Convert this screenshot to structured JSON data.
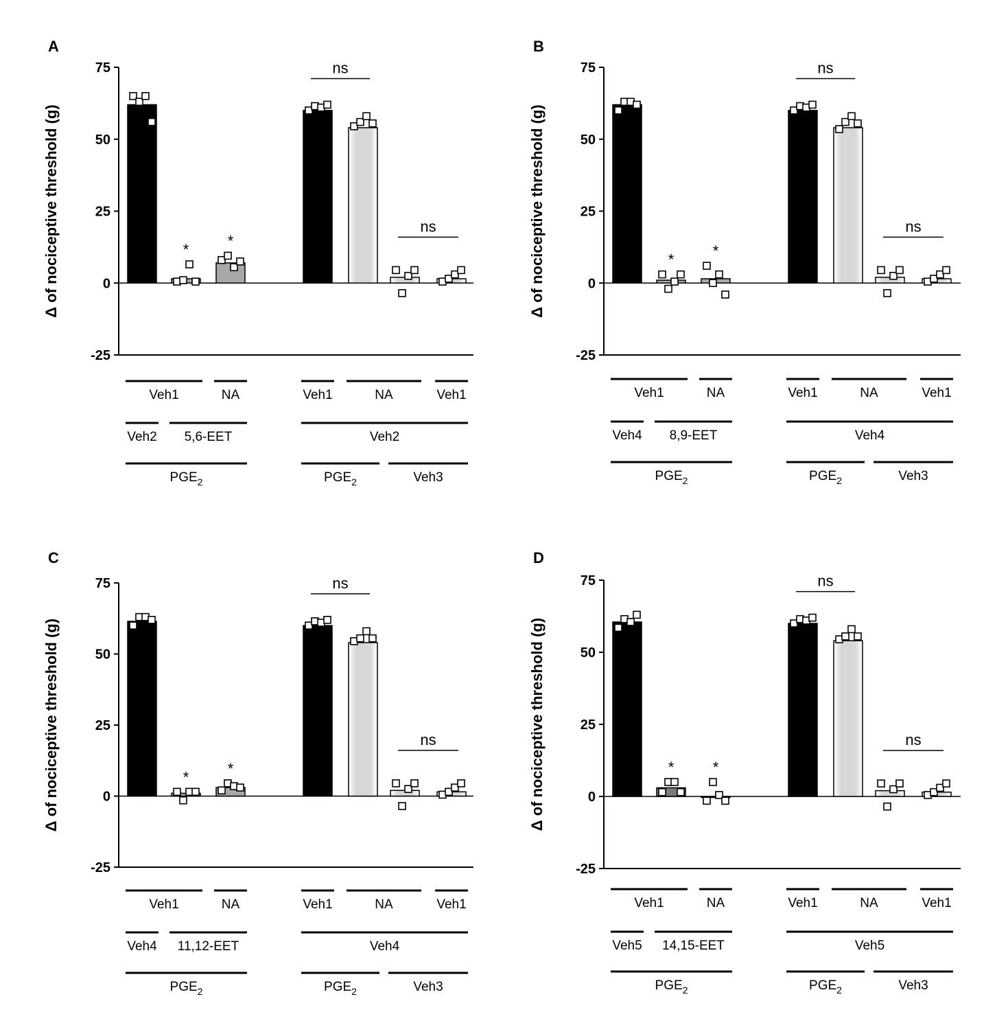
{
  "figure": {
    "colors": {
      "black": "#000000",
      "dark_gray": "#7a7a7a",
      "mid_gray": "#a8a8a8",
      "light_gray": "#d7d7d7",
      "marker_fill": "#ffffff",
      "line": "#000000"
    }
  },
  "chart_data": [
    {
      "type": "bar",
      "panel": "A",
      "ylabel": "Δ of nociceptive threshold (g)",
      "ylim": [
        -25,
        75
      ],
      "yticks": [
        "75",
        "50",
        "25",
        "0",
        "-25"
      ],
      "yticks_values": [
        75,
        50,
        25,
        0,
        -25
      ],
      "bars": [
        {
          "name": "PGE2 Veh2 Veh1",
          "value": 62,
          "fill": "black",
          "points": [
            65,
            63,
            65,
            56
          ],
          "star": ""
        },
        {
          "name": "PGE2 5,6-EET Veh1",
          "value": 1.5,
          "fill": "mid_gray",
          "points": [
            0.5,
            1,
            6.5,
            0.5
          ],
          "star": "*"
        },
        {
          "name": "PGE2 5,6-EET NA",
          "value": 7,
          "fill": "mid_gray",
          "points": [
            8,
            9.5,
            5.5,
            7.5
          ],
          "star": "*"
        },
        {
          "name": "PGE2 Veh2 Veh1",
          "value": 60,
          "fill": "black",
          "points": [
            60,
            61.5,
            61,
            62
          ],
          "star": ""
        },
        {
          "name": "PGE2 Veh2 NA",
          "value": 54,
          "fill": "light_gray",
          "points": [
            54.5,
            56,
            58,
            55.5
          ],
          "star": ""
        },
        {
          "name": "Veh3 Veh2 NA",
          "value": 2,
          "fill": "light_gray",
          "points": [
            4.5,
            -3.5,
            2.5,
            4.5
          ],
          "star": ""
        },
        {
          "name": "Veh3 Veh2 Veh1",
          "value": 1.5,
          "fill": "light_gray",
          "points": [
            0.5,
            1.5,
            3,
            4.5
          ],
          "star": ""
        }
      ],
      "significance": [
        {
          "label": "ns",
          "from_bar": 3,
          "to_bar": 4
        },
        {
          "label": "ns",
          "from_bar": 5,
          "to_bar": 6
        }
      ],
      "row1": [
        {
          "label": "Veh1",
          "bars": [
            0,
            1
          ]
        },
        {
          "label": "NA",
          "bars": [
            2,
            2
          ]
        },
        {
          "label": "Veh1",
          "bars": [
            3,
            3
          ]
        },
        {
          "label": "NA",
          "bars": [
            4,
            5
          ]
        },
        {
          "label": "Veh1",
          "bars": [
            6,
            6
          ]
        }
      ],
      "row2": [
        {
          "label": "Veh2",
          "bars": [
            0,
            0
          ]
        },
        {
          "label": "5,6-EET",
          "bars": [
            1,
            2
          ]
        },
        {
          "label": "Veh2",
          "bars": [
            3,
            6
          ]
        }
      ],
      "row3": [
        {
          "label": "PGE",
          "sub": "2",
          "bars": [
            0,
            2
          ]
        },
        {
          "label": "PGE",
          "sub": "2",
          "bars": [
            3,
            4
          ]
        },
        {
          "label": "Veh3",
          "sub": "",
          "bars": [
            5,
            6
          ]
        }
      ]
    },
    {
      "type": "bar",
      "panel": "B",
      "ylabel": "Δ of nociceptive threshold (g)",
      "ylim": [
        -25,
        75
      ],
      "yticks": [
        "75",
        "50",
        "25",
        "0",
        "-25"
      ],
      "yticks_values": [
        75,
        50,
        25,
        0,
        -25
      ],
      "bars": [
        {
          "name": "PGE2 Veh4 Veh1",
          "value": 62,
          "fill": "black",
          "points": [
            60,
            63,
            63,
            62
          ],
          "star": ""
        },
        {
          "name": "PGE2 8,9-EET Veh1",
          "value": 1,
          "fill": "mid_gray",
          "points": [
            3,
            -2,
            0.5,
            3
          ],
          "star": "*"
        },
        {
          "name": "PGE2 8,9-EET NA",
          "value": 1.5,
          "fill": "mid_gray",
          "points": [
            6,
            0,
            3,
            -4
          ],
          "star": "*"
        },
        {
          "name": "PGE2 Veh4 Veh1",
          "value": 60,
          "fill": "black",
          "points": [
            60,
            61.5,
            61,
            62
          ],
          "star": ""
        },
        {
          "name": "PGE2 Veh4 NA",
          "value": 54,
          "fill": "light_gray",
          "points": [
            53.5,
            56,
            58,
            55.5
          ],
          "star": ""
        },
        {
          "name": "Veh3 Veh4 NA",
          "value": 2,
          "fill": "light_gray",
          "points": [
            4.5,
            -3.5,
            2.5,
            4.5
          ],
          "star": ""
        },
        {
          "name": "Veh3 Veh4 Veh1",
          "value": 1.5,
          "fill": "light_gray",
          "points": [
            0.5,
            1.5,
            3,
            4.5
          ],
          "star": ""
        }
      ],
      "significance": [
        {
          "label": "ns",
          "from_bar": 3,
          "to_bar": 4
        },
        {
          "label": "ns",
          "from_bar": 5,
          "to_bar": 6
        }
      ],
      "row1": [
        {
          "label": "Veh1",
          "bars": [
            0,
            1
          ]
        },
        {
          "label": "NA",
          "bars": [
            2,
            2
          ]
        },
        {
          "label": "Veh1",
          "bars": [
            3,
            3
          ]
        },
        {
          "label": "NA",
          "bars": [
            4,
            5
          ]
        },
        {
          "label": "Veh1",
          "bars": [
            6,
            6
          ]
        }
      ],
      "row2": [
        {
          "label": "Veh4",
          "bars": [
            0,
            0
          ]
        },
        {
          "label": "8,9-EET",
          "bars": [
            1,
            2
          ]
        },
        {
          "label": "Veh4",
          "bars": [
            3,
            6
          ]
        }
      ],
      "row3": [
        {
          "label": "PGE",
          "sub": "2",
          "bars": [
            0,
            2
          ]
        },
        {
          "label": "PGE",
          "sub": "2",
          "bars": [
            3,
            4
          ]
        },
        {
          "label": "Veh3",
          "sub": "",
          "bars": [
            5,
            6
          ]
        }
      ]
    },
    {
      "type": "bar",
      "panel": "C",
      "ylabel": "Δ of nociceptive threshold (g)",
      "ylim": [
        -25,
        75
      ],
      "yticks": [
        "75",
        "50",
        "25",
        "0",
        "-25"
      ],
      "yticks_values": [
        75,
        50,
        25,
        0,
        -25
      ],
      "bars": [
        {
          "name": "PGE2 Veh4 Veh1",
          "value": 61.5,
          "fill": "black",
          "points": [
            60,
            63,
            63,
            62
          ],
          "star": ""
        },
        {
          "name": "PGE2 11,12-EET Veh1",
          "value": 1,
          "fill": "mid_gray",
          "points": [
            1.5,
            -1.5,
            1.5,
            1.5
          ],
          "star": "*"
        },
        {
          "name": "PGE2 11,12-EET NA",
          "value": 3,
          "fill": "mid_gray",
          "points": [
            2,
            4.5,
            3.5,
            3
          ],
          "star": "*"
        },
        {
          "name": "PGE2 Veh4 Veh1",
          "value": 60,
          "fill": "black",
          "points": [
            60,
            61.5,
            61,
            62
          ],
          "star": ""
        },
        {
          "name": "PGE2 Veh4 NA",
          "value": 54,
          "fill": "light_gray",
          "points": [
            54.5,
            55.5,
            58,
            55.5
          ],
          "star": ""
        },
        {
          "name": "Veh3 Veh4 NA",
          "value": 2,
          "fill": "light_gray",
          "points": [
            4.5,
            -3.5,
            2.5,
            4.5
          ],
          "star": ""
        },
        {
          "name": "Veh3 Veh4 Veh1",
          "value": 1.5,
          "fill": "light_gray",
          "points": [
            0.5,
            1.5,
            3,
            4.5
          ],
          "star": ""
        }
      ],
      "significance": [
        {
          "label": "ns",
          "from_bar": 3,
          "to_bar": 4
        },
        {
          "label": "ns",
          "from_bar": 5,
          "to_bar": 6
        }
      ],
      "row1": [
        {
          "label": "Veh1",
          "bars": [
            0,
            1
          ]
        },
        {
          "label": "NA",
          "bars": [
            2,
            2
          ]
        },
        {
          "label": "Veh1",
          "bars": [
            3,
            3
          ]
        },
        {
          "label": "NA",
          "bars": [
            4,
            5
          ]
        },
        {
          "label": "Veh1",
          "bars": [
            6,
            6
          ]
        }
      ],
      "row2": [
        {
          "label": "Veh4",
          "bars": [
            0,
            0
          ]
        },
        {
          "label": "11,12-EET",
          "bars": [
            1,
            2
          ]
        },
        {
          "label": "Veh4",
          "bars": [
            3,
            6
          ]
        }
      ],
      "row3": [
        {
          "label": "PGE",
          "sub": "2",
          "bars": [
            0,
            2
          ]
        },
        {
          "label": "PGE",
          "sub": "2",
          "bars": [
            3,
            4
          ]
        },
        {
          "label": "Veh3",
          "sub": "",
          "bars": [
            5,
            6
          ]
        }
      ]
    },
    {
      "type": "bar",
      "panel": "D",
      "ylabel": "Δ of nociceptive threshold (g)",
      "ylim": [
        -25,
        75
      ],
      "yticks": [
        "75",
        "50",
        "25",
        "0",
        "-25"
      ],
      "yticks_values": [
        75,
        50,
        25,
        0,
        -25
      ],
      "bars": [
        {
          "name": "PGE2 Veh5 Veh1",
          "value": 60.5,
          "fill": "black",
          "points": [
            58.5,
            61.5,
            60.5,
            63
          ],
          "star": ""
        },
        {
          "name": "PGE2 14,15-EET Veh1",
          "value": 3,
          "fill": "dark_gray",
          "points": [
            1.5,
            5,
            5,
            1.5
          ],
          "star": "*"
        },
        {
          "name": "PGE2 14,15-EET NA",
          "value": 0,
          "fill": "mid_gray",
          "points": [
            -1.5,
            5,
            0.5,
            -1.5
          ],
          "star": "*"
        },
        {
          "name": "PGE2 Veh5 Veh1",
          "value": 60,
          "fill": "black",
          "points": [
            60,
            61.5,
            61,
            62
          ],
          "star": ""
        },
        {
          "name": "PGE2 Veh5 NA",
          "value": 54,
          "fill": "light_gray",
          "points": [
            54.5,
            55.5,
            58,
            55.5
          ],
          "star": ""
        },
        {
          "name": "Veh3 Veh5 NA",
          "value": 2,
          "fill": "light_gray",
          "points": [
            4.5,
            -3.5,
            2.5,
            4.5
          ],
          "star": ""
        },
        {
          "name": "Veh3 Veh5 Veh1",
          "value": 1.5,
          "fill": "light_gray",
          "points": [
            0.5,
            1.5,
            3,
            4.5
          ],
          "star": ""
        }
      ],
      "significance": [
        {
          "label": "ns",
          "from_bar": 3,
          "to_bar": 4
        },
        {
          "label": "ns",
          "from_bar": 5,
          "to_bar": 6
        }
      ],
      "row1": [
        {
          "label": "Veh1",
          "bars": [
            0,
            1
          ]
        },
        {
          "label": "NA",
          "bars": [
            2,
            2
          ]
        },
        {
          "label": "Veh1",
          "bars": [
            3,
            3
          ]
        },
        {
          "label": "NA",
          "bars": [
            4,
            5
          ]
        },
        {
          "label": "Veh1",
          "bars": [
            6,
            6
          ]
        }
      ],
      "row2": [
        {
          "label": "Veh5",
          "bars": [
            0,
            0
          ]
        },
        {
          "label": "14,15-EET",
          "bars": [
            1,
            2
          ]
        },
        {
          "label": "Veh5",
          "bars": [
            3,
            6
          ]
        }
      ],
      "row3": [
        {
          "label": "PGE",
          "sub": "2",
          "bars": [
            0,
            2
          ]
        },
        {
          "label": "PGE",
          "sub": "2",
          "bars": [
            3,
            4
          ]
        },
        {
          "label": "Veh3",
          "sub": "",
          "bars": [
            5,
            6
          ]
        }
      ]
    }
  ]
}
